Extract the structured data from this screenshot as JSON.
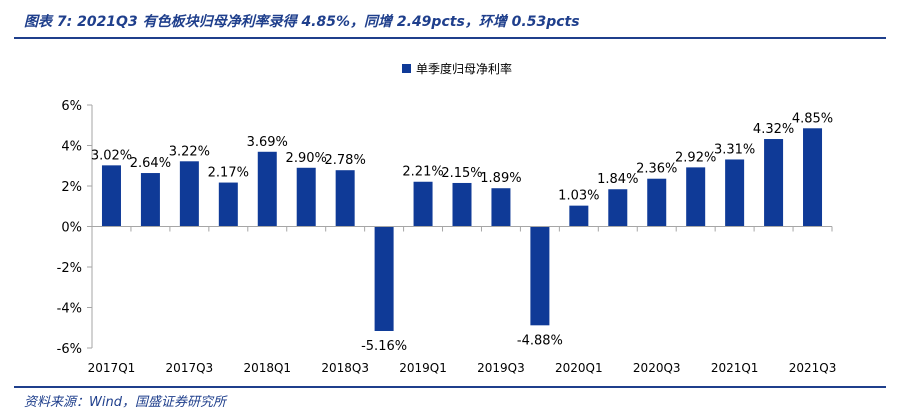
{
  "header": {
    "title": "图表 7:  2021Q3 有色板块归母净利率录得 4.85%，同增 2.49pcts，环增 0.53pcts"
  },
  "footer": {
    "source": "资料来源：Wind，国盛证券研究所"
  },
  "chart_data": {
    "type": "bar",
    "categories": [
      "2017Q1",
      "2017Q2",
      "2017Q3",
      "2017Q4",
      "2018Q1",
      "2018Q2",
      "2018Q3",
      "2018Q4",
      "2019Q1",
      "2019Q2",
      "2019Q3",
      "2019Q4",
      "2020Q1",
      "2020Q2",
      "2020Q3",
      "2020Q4",
      "2021Q1",
      "2021Q2",
      "2021Q3"
    ],
    "tick_labels": [
      "2017Q1",
      "",
      "2017Q3",
      "",
      "2018Q1",
      "",
      "2018Q3",
      "",
      "2019Q1",
      "",
      "2019Q3",
      "",
      "2020Q1",
      "",
      "2020Q3",
      "",
      "2021Q1",
      "",
      "2021Q3"
    ],
    "series": [
      {
        "name": "单季度归母净利率",
        "values": [
          3.02,
          2.64,
          3.22,
          2.17,
          3.69,
          2.9,
          2.78,
          -5.16,
          2.21,
          2.15,
          1.89,
          -4.88,
          1.03,
          1.84,
          2.36,
          2.92,
          3.31,
          4.32,
          4.85
        ],
        "labels": [
          "3.02%",
          "2.64%",
          "3.22%",
          "2.17%",
          "3.69%",
          "2.90%",
          "2.78%",
          "-5.16%",
          "2.21%",
          "2.15%",
          "1.89%",
          "-4.88%",
          "1.03%",
          "1.84%",
          "2.36%",
          "2.92%",
          "3.31%",
          "4.32%",
          "4.85%"
        ],
        "color": "#0f3a97"
      }
    ],
    "yticks": [
      6,
      4,
      2,
      0,
      -2,
      -4,
      -6
    ],
    "ytick_labels": [
      "6%",
      "4%",
      "2%",
      "0%",
      "-2%",
      "-4%",
      "-6%"
    ],
    "ylim": [
      -6,
      6
    ],
    "grid": false,
    "legend": "top-center",
    "axis_color": "#a6a6a6"
  }
}
